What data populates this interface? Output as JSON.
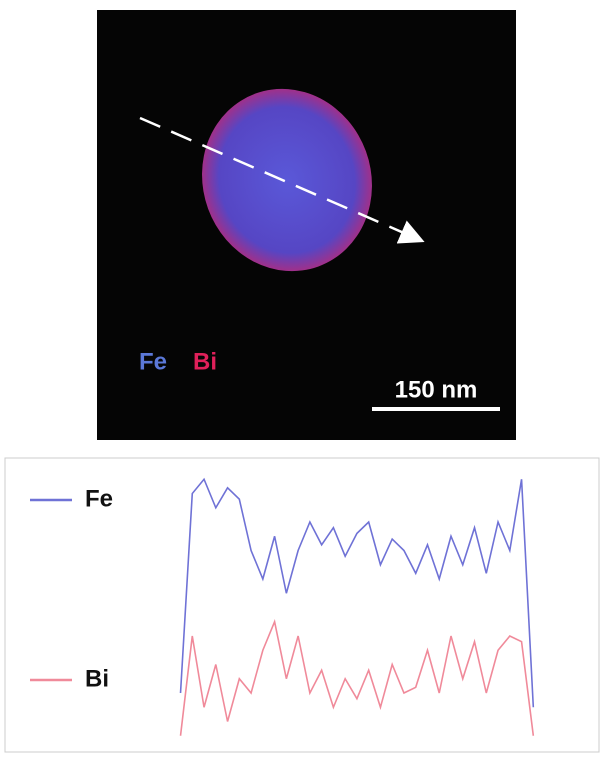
{
  "image": {
    "element_labels": [
      "Fe",
      "Bi"
    ],
    "scale_bar": "150 nm"
  },
  "chart_data": {
    "type": "line",
    "xlim": [
      0,
      100
    ],
    "ylim": [
      0,
      100
    ],
    "x": [
      29,
      31,
      33,
      35,
      37,
      39,
      41,
      43,
      45,
      47,
      49,
      51,
      53,
      55,
      57,
      59,
      61,
      63,
      65,
      67,
      69,
      71,
      73,
      75,
      77,
      79,
      81,
      83,
      85,
      87,
      89
    ],
    "series": [
      {
        "name": "Fe",
        "color": "#6f72d6",
        "values": [
          20,
          90,
          95,
          85,
          92,
          88,
          70,
          60,
          75,
          55,
          70,
          80,
          72,
          78,
          68,
          76,
          80,
          65,
          74,
          70,
          62,
          72,
          60,
          75,
          65,
          78,
          62,
          80,
          70,
          95,
          15
        ]
      },
      {
        "name": "Bi",
        "color": "#f08a9a",
        "values": [
          5,
          40,
          15,
          30,
          10,
          25,
          20,
          35,
          45,
          25,
          40,
          20,
          28,
          15,
          25,
          18,
          28,
          15,
          30,
          20,
          22,
          35,
          20,
          40,
          25,
          38,
          20,
          35,
          40,
          38,
          5
        ]
      }
    ]
  }
}
